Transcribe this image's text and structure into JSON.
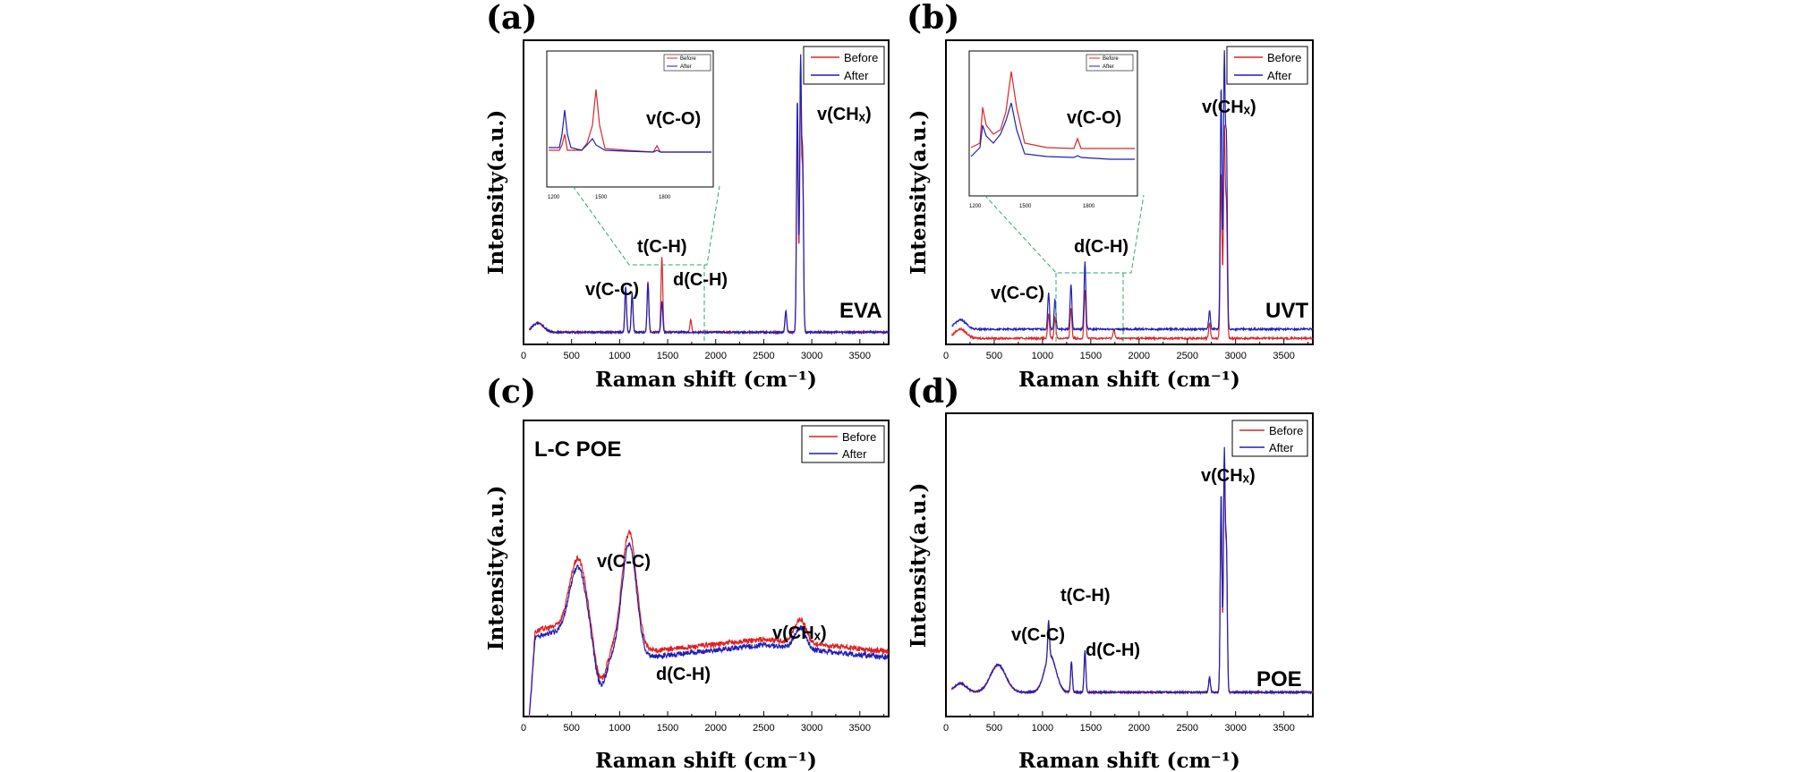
{
  "chart_data": [
    {
      "panel": "(a)",
      "type": "line",
      "xlabel": "Raman shift (cm⁻¹)",
      "ylabel": "Intensity(a.u.)",
      "xlim": [
        0,
        3800
      ],
      "x_ticks": [
        "0",
        "500",
        "1000",
        "1500",
        "2000",
        "2500",
        "3000",
        "3500"
      ],
      "legend": [
        "Before",
        "After"
      ],
      "sample": "EVA",
      "annotations": [
        "v(C-C)",
        "t(C-H)",
        "d(C-H)",
        "v(CHₓ)"
      ],
      "inset": {
        "annotation": "v(C-O)",
        "legend": [
          "Before",
          "After"
        ],
        "x_ticks": [
          "1200",
          "1500",
          "1800"
        ]
      },
      "series": [
        {
          "name": "Before",
          "color": "#d62828",
          "peaks": [
            [
              1063,
              0.14
            ],
            [
              1130,
              0.12
            ],
            [
              1295,
              0.17
            ],
            [
              1440,
              0.25
            ],
            [
              1740,
              0.04
            ],
            [
              2730,
              0.07
            ],
            [
              2850,
              0.68
            ],
            [
              2883,
              0.8
            ],
            [
              2905,
              0.5
            ]
          ],
          "baseline": 0.04
        },
        {
          "name": "After",
          "color": "#1f1fb4",
          "peaks": [
            [
              1063,
              0.15
            ],
            [
              1130,
              0.13
            ],
            [
              1295,
              0.16
            ],
            [
              1440,
              0.1
            ],
            [
              2730,
              0.07
            ],
            [
              2850,
              0.77
            ],
            [
              2883,
              0.88
            ],
            [
              2905,
              0.56
            ]
          ],
          "baseline": 0.04
        }
      ]
    },
    {
      "panel": "(b)",
      "type": "line",
      "xlabel": "Raman shift (cm⁻¹)",
      "ylabel": "Intensity(a.u.)",
      "xlim": [
        0,
        3800
      ],
      "x_ticks": [
        "0",
        "500",
        "1000",
        "1500",
        "2000",
        "2500",
        "3000",
        "3500"
      ],
      "legend": [
        "Before",
        "After"
      ],
      "sample": "UVT",
      "annotations": [
        "v(C-C)",
        "d(C-H)",
        "v(CHₓ)"
      ],
      "inset": {
        "annotation": "v(C-O)",
        "legend": [
          "Before",
          "After"
        ],
        "x_ticks": [
          "1200",
          "1500",
          "1800"
        ]
      },
      "series": [
        {
          "name": "Before",
          "color": "#d62828",
          "peaks": [
            [
              1063,
              0.08
            ],
            [
              1130,
              0.07
            ],
            [
              1295,
              0.1
            ],
            [
              1440,
              0.16
            ],
            [
              1740,
              0.03
            ],
            [
              2730,
              0.05
            ],
            [
              2850,
              0.55
            ],
            [
              2883,
              0.68
            ],
            [
              2905,
              0.42
            ]
          ],
          "baseline": 0.02
        },
        {
          "name": "After",
          "color": "#1f1fb4",
          "peaks": [
            [
              1063,
              0.12
            ],
            [
              1130,
              0.1
            ],
            [
              1295,
              0.15
            ],
            [
              1440,
              0.22
            ],
            [
              2730,
              0.06
            ],
            [
              2850,
              0.8
            ],
            [
              2883,
              0.88
            ],
            [
              2905,
              0.6
            ]
          ],
          "baseline": 0.05
        }
      ]
    },
    {
      "panel": "(c)",
      "type": "line",
      "xlabel": "Raman shift (cm⁻¹)",
      "ylabel": "Intensity(a.u.)",
      "xlim": [
        0,
        3800
      ],
      "x_ticks": [
        "0",
        "500",
        "1000",
        "1500",
        "2000",
        "2500",
        "3000",
        "3500"
      ],
      "legend": [
        "Before",
        "After"
      ],
      "sample": "L-C POE",
      "annotations": [
        "v(C-C)",
        "d(C-H)",
        "v(CHₓ)"
      ],
      "series": [
        {
          "name": "Before",
          "color": "#e02020",
          "broad": [
            [
              570,
              0.26,
              90
            ],
            [
              1100,
              0.4,
              75
            ],
            [
              2880,
              0.08,
              60
            ]
          ],
          "baseline": 0.22
        },
        {
          "name": "After",
          "color": "#1f1fb4",
          "broad": [
            [
              570,
              0.25,
              90
            ],
            [
              1100,
              0.38,
              75
            ],
            [
              2880,
              0.07,
              60
            ]
          ],
          "baseline": 0.2
        }
      ]
    },
    {
      "panel": "(d)",
      "type": "line",
      "xlabel": "Raman shift (cm⁻¹)",
      "ylabel": "Intensity(a.u.)",
      "xlim": [
        0,
        3800
      ],
      "x_ticks": [
        "0",
        "500",
        "1000",
        "1500",
        "2000",
        "2500",
        "3000",
        "3500"
      ],
      "legend": [
        "Before",
        "After"
      ],
      "sample": "POE",
      "annotations": [
        "t(C-H)",
        "v(C-C)",
        "d(C-H)",
        "v(CHₓ)"
      ],
      "series": [
        {
          "name": "Before",
          "color": "#d62828",
          "peaks": [
            [
              1063,
              0.12
            ],
            [
              1300,
              0.1
            ],
            [
              1440,
              0.13
            ],
            [
              2730,
              0.05
            ],
            [
              2850,
              0.62
            ],
            [
              2883,
              0.74
            ],
            [
              2905,
              0.45
            ]
          ],
          "broad": [
            [
              540,
              0.09,
              80
            ],
            [
              1080,
              0.12,
              60
            ]
          ],
          "baseline": 0.08
        },
        {
          "name": "After",
          "color": "#1f1fb4",
          "peaks": [
            [
              1063,
              0.12
            ],
            [
              1300,
              0.1
            ],
            [
              1440,
              0.14
            ],
            [
              2730,
              0.05
            ],
            [
              2850,
              0.66
            ],
            [
              2883,
              0.78
            ],
            [
              2905,
              0.47
            ]
          ],
          "broad": [
            [
              540,
              0.09,
              80
            ],
            [
              1080,
              0.12,
              60
            ]
          ],
          "baseline": 0.08
        }
      ]
    }
  ]
}
